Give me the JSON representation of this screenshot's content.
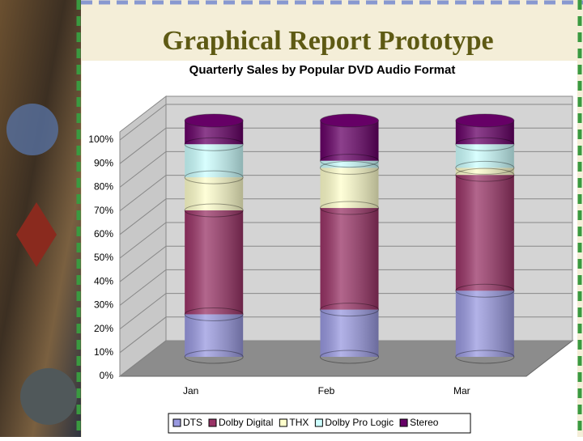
{
  "slide_title": "Graphical Report Prototype",
  "chart_data": {
    "type": "bar",
    "stacked": true,
    "title": "Quarterly Sales by Popular DVD Audio Format",
    "categories": [
      "Jan",
      "Feb",
      "Mar"
    ],
    "series": [
      {
        "name": "DTS",
        "color": "#9999e0",
        "values": [
          18,
          20,
          28
        ]
      },
      {
        "name": "Dolby Digital",
        "color": "#993366",
        "values": [
          44,
          43,
          49
        ]
      },
      {
        "name": "THX",
        "color": "#ffffcc",
        "values": [
          14,
          17,
          3
        ]
      },
      {
        "name": "Dolby Pro Logic",
        "color": "#ccffff",
        "values": [
          14,
          3,
          10
        ]
      },
      {
        "name": "Stereo",
        "color": "#660066",
        "values": [
          10,
          17,
          10
        ]
      }
    ],
    "ylim": [
      0,
      100
    ],
    "yticks": [
      {
        "value": 0,
        "label": "0%"
      },
      {
        "value": 10,
        "label": "10%"
      },
      {
        "value": 20,
        "label": "20%"
      },
      {
        "value": 30,
        "label": "30%"
      },
      {
        "value": 40,
        "label": "40%"
      },
      {
        "value": 50,
        "label": "50%"
      },
      {
        "value": 60,
        "label": "60%"
      },
      {
        "value": 70,
        "label": "70%"
      },
      {
        "value": 80,
        "label": "80%"
      },
      {
        "value": 90,
        "label": "90%"
      },
      {
        "value": 100,
        "label": "100%"
      }
    ],
    "grid": true,
    "legend": "bottom"
  }
}
